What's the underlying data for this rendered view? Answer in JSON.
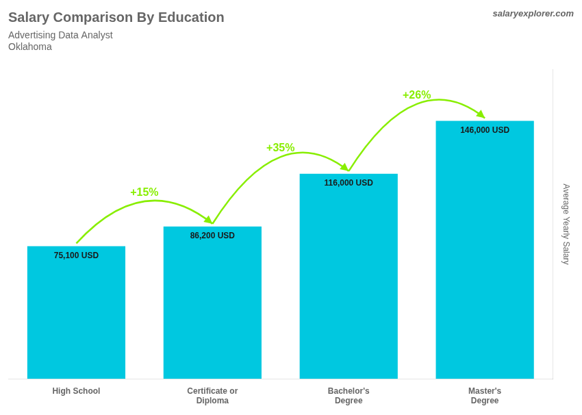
{
  "chart_data": {
    "type": "bar",
    "title": "Salary Comparison By Education",
    "subtitle": [
      "Advertising Data Analyst",
      "Oklahoma"
    ],
    "ylabel": "Average Yearly Salary",
    "categories": [
      "High School",
      "Certificate or\nDiploma",
      "Bachelor's\nDegree",
      "Master's\nDegree"
    ],
    "values": [
      75100,
      86200,
      116000,
      146000
    ],
    "value_labels": [
      "75,100 USD",
      "86,200 USD",
      "116,000 USD",
      "146,000 USD"
    ],
    "data_labels": true,
    "color": "#00c8e0",
    "ylim": [
      0,
      175000
    ],
    "grid": false,
    "tick_labels": "x",
    "annotations": [
      {
        "text": "+15%",
        "from": 0,
        "to": 1,
        "color": "#88ee00"
      },
      {
        "text": "+35%",
        "from": 1,
        "to": 2,
        "color": "#88ee00"
      },
      {
        "text": "+26%",
        "from": 2,
        "to": 3,
        "color": "#88ee00"
      },
      {
        "text": "salaryexplorer.com"
      }
    ]
  }
}
